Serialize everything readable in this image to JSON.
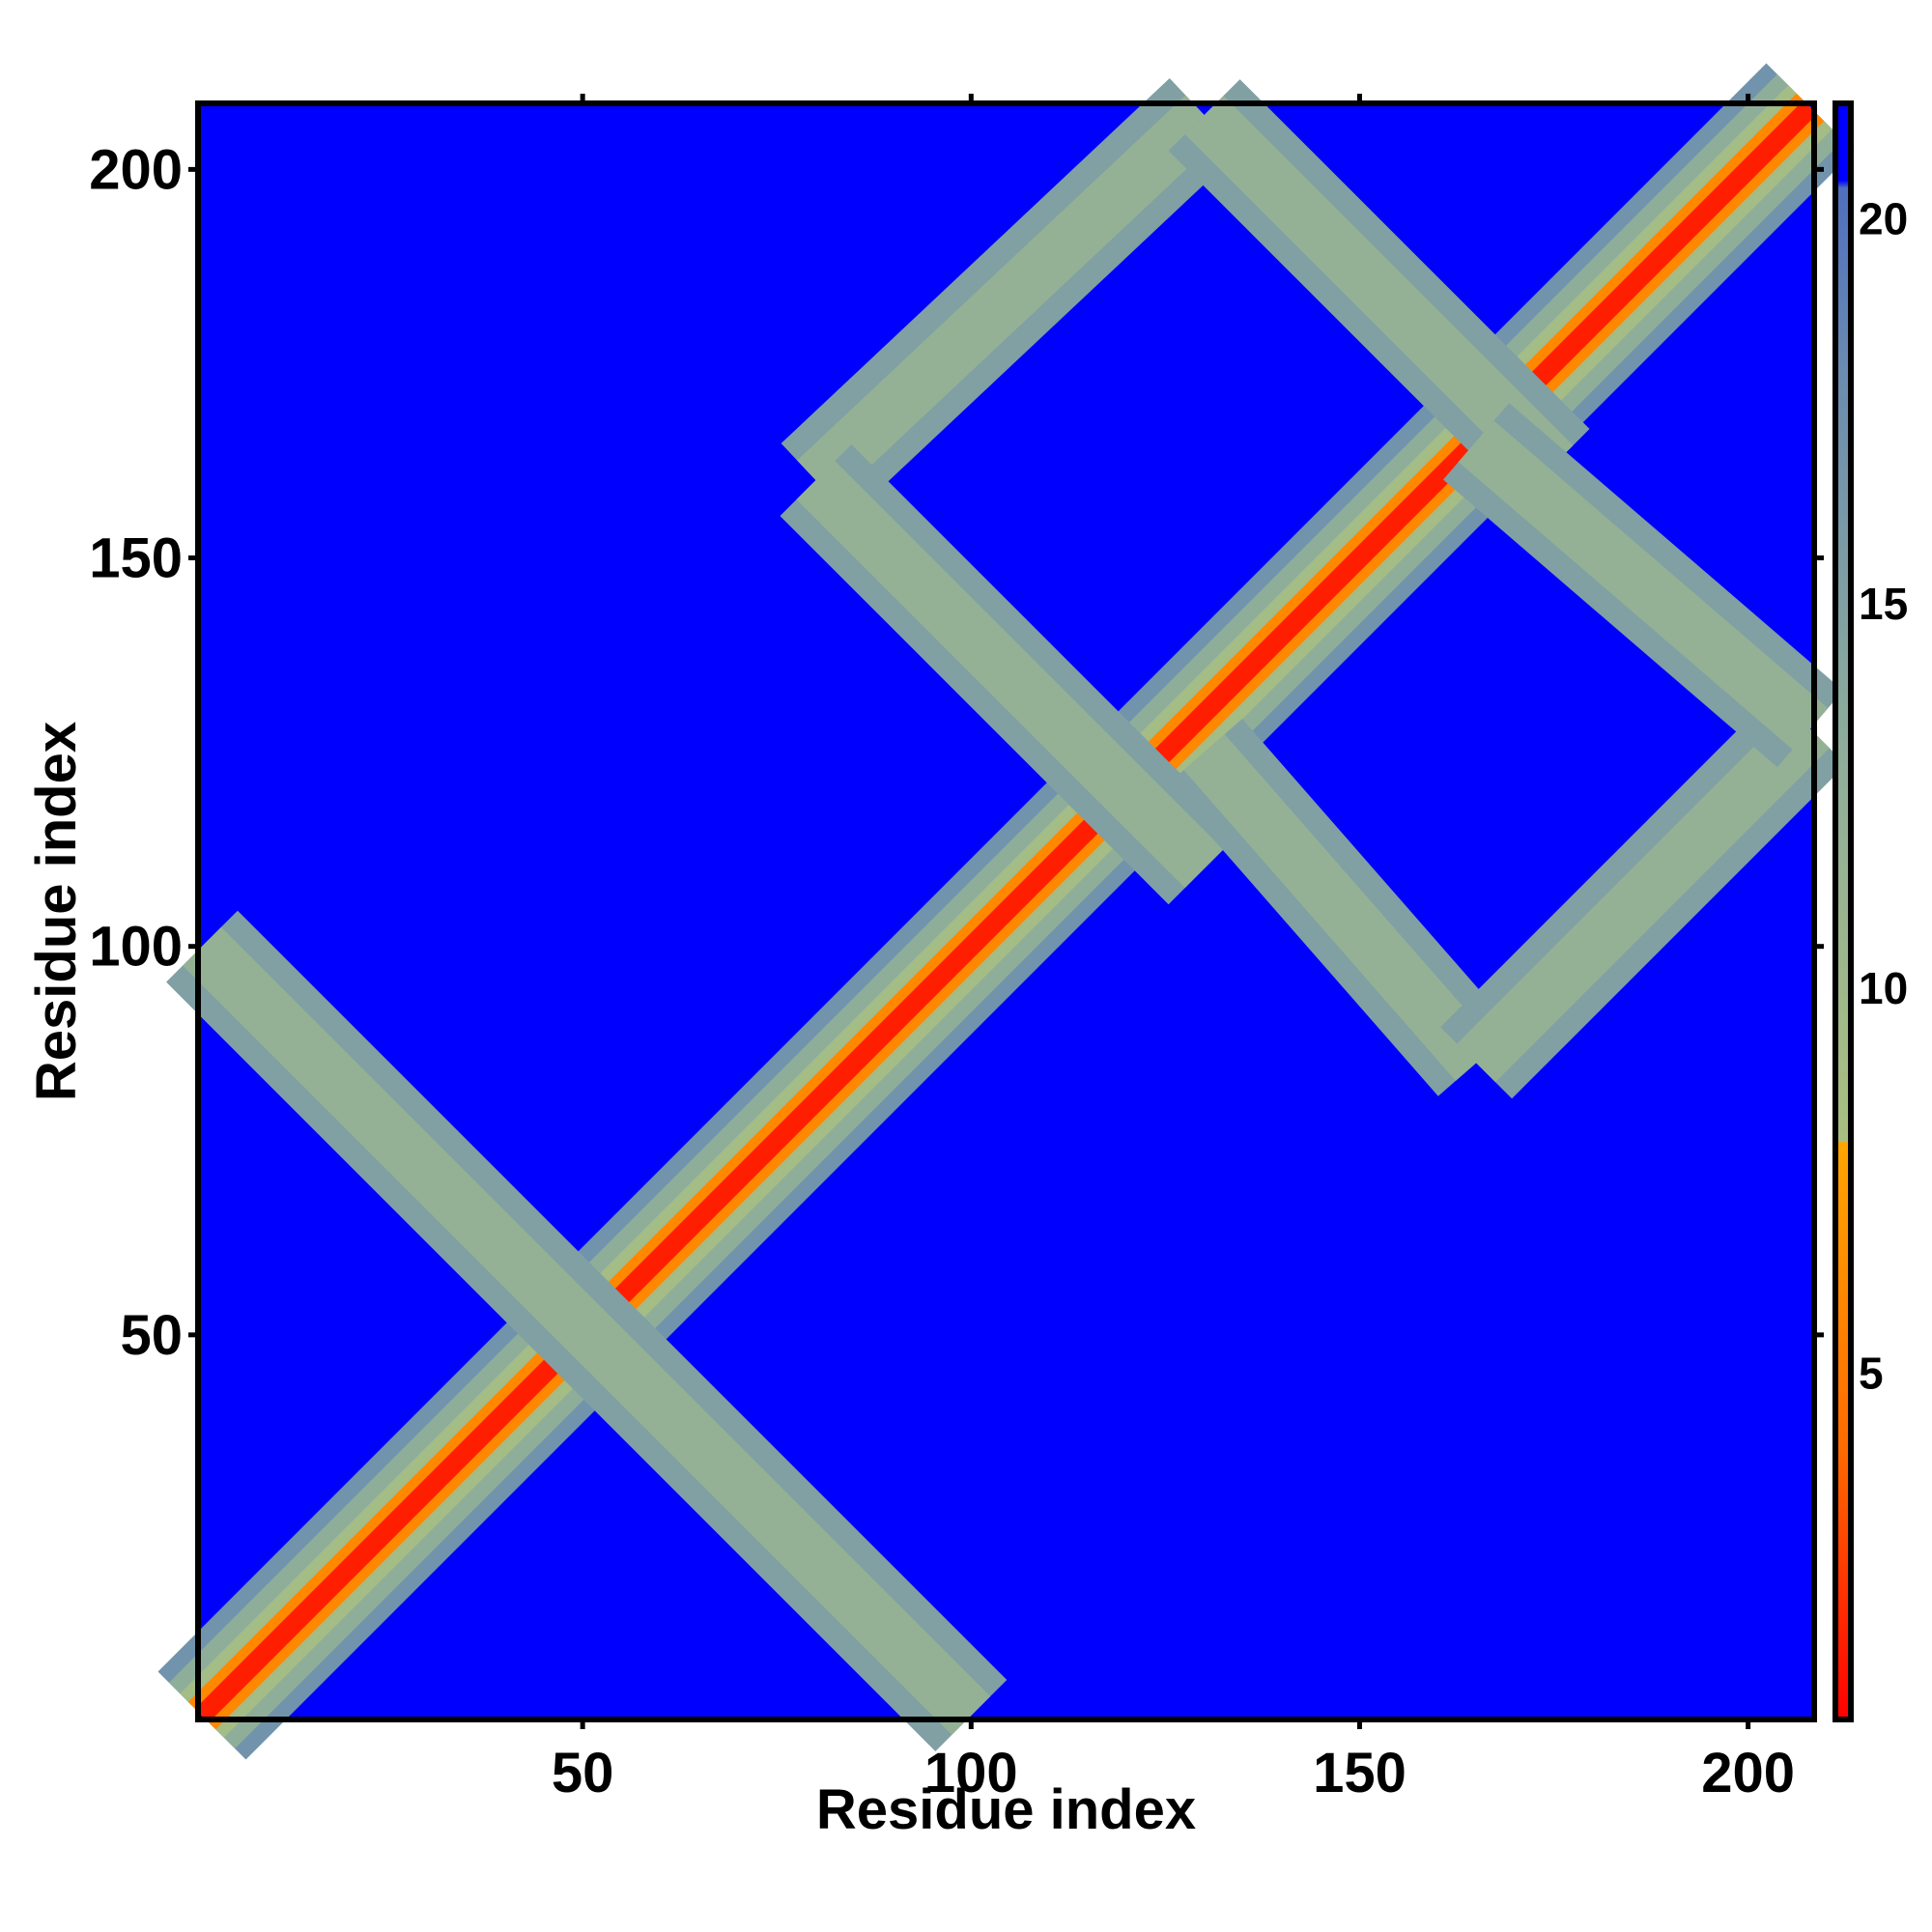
{
  "chart_data": {
    "type": "heatmap",
    "title": "",
    "xlabel": "Residue index",
    "ylabel": "Residue index",
    "n_residues": 208,
    "xlim": [
      1,
      208
    ],
    "ylim": [
      1,
      208
    ],
    "x_ticks": [
      50,
      100,
      150,
      200
    ],
    "y_ticks": [
      50,
      100,
      150,
      200
    ],
    "colorbar": {
      "range": [
        0.5,
        21.5
      ],
      "ticks": [
        5,
        10,
        15,
        20
      ],
      "colormap": [
        {
          "stop": 0.5,
          "color": "#ff0000"
        },
        {
          "stop": 4,
          "color": "#ff6a00"
        },
        {
          "stop": 8,
          "color": "#ffa500"
        },
        {
          "stop": 8.01,
          "color": "#a9bf80"
        },
        {
          "stop": 13,
          "color": "#8fae9a"
        },
        {
          "stop": 18,
          "color": "#6a8cb0"
        },
        {
          "stop": 20.4,
          "color": "#4f6fbf"
        },
        {
          "stop": 20.5,
          "color": "#0000ff"
        },
        {
          "stop": 21.5,
          "color": "#0000ff"
        }
      ],
      "background_color": "#0000ff"
    },
    "contact_regions": [
      {
        "feature": "diagonal",
        "from": [
          1,
          1
        ],
        "to": [
          208,
          208
        ]
      },
      {
        "feature": "antidiagonal-band",
        "from": [
          1,
          100
        ],
        "to": [
          100,
          1
        ]
      },
      {
        "feature": "antidiagonal-band",
        "from": [
          80,
          160
        ],
        "to": [
          130,
          207
        ]
      },
      {
        "feature": "diagonal-band",
        "from": [
          80,
          160
        ],
        "to": [
          130,
          110
        ]
      },
      {
        "feature": "diagonal-band",
        "from": [
          130,
          207
        ],
        "to": [
          175,
          162
        ]
      },
      {
        "feature": "antidiagonal-band",
        "from": [
          130,
          125
        ],
        "to": [
          165,
          85
        ]
      },
      {
        "feature": "diagonal-band",
        "from": [
          165,
          85
        ],
        "to": [
          208,
          128
        ]
      },
      {
        "feature": "antidiagonal-band",
        "from": [
          165,
          165
        ],
        "to": [
          208,
          128
        ]
      }
    ]
  }
}
